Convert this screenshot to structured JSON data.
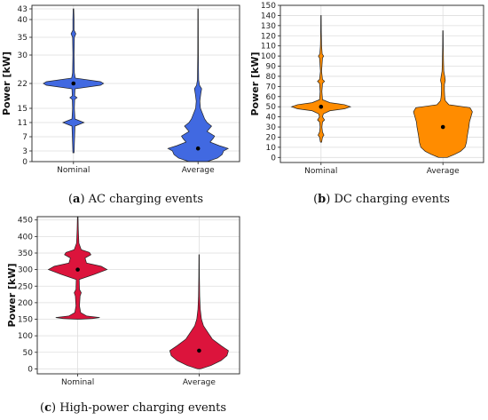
{
  "chart_data": [
    {
      "type": "violin",
      "caption_letter": "a",
      "caption_text": "AC charging events",
      "ylabel": "Power [kW]",
      "ylim": [
        0,
        44
      ],
      "yticks": [
        0,
        3,
        7,
        11,
        15,
        22,
        30,
        35,
        40,
        43
      ],
      "categories": [
        "Nominal",
        "Average"
      ],
      "color": "#4169e1",
      "grid": true,
      "series": [
        {
          "category": "Nominal",
          "median": 22,
          "range": [
            2.5,
            43
          ],
          "density": [
            [
              2.5,
              0.02
            ],
            [
              5,
              0.03
            ],
            [
              10,
              0.05
            ],
            [
              11,
              0.35
            ],
            [
              12,
              0.05
            ],
            [
              15,
              0.03
            ],
            [
              17.5,
              0.04
            ],
            [
              18,
              0.12
            ],
            [
              18.5,
              0.04
            ],
            [
              20.5,
              0.05
            ],
            [
              21.5,
              0.9
            ],
            [
              22,
              1.0
            ],
            [
              22.5,
              0.9
            ],
            [
              23.5,
              0.06
            ],
            [
              25,
              0.03
            ],
            [
              30,
              0.02
            ],
            [
              35,
              0.03
            ],
            [
              36,
              0.08
            ],
            [
              37,
              0.02
            ],
            [
              40,
              0.02
            ],
            [
              43,
              0.01
            ]
          ]
        },
        {
          "category": "Average",
          "median": 3.7,
          "range": [
            0,
            43
          ],
          "density": [
            [
              0,
              0.3
            ],
            [
              1,
              0.65
            ],
            [
              2,
              0.8
            ],
            [
              3,
              0.85
            ],
            [
              3.7,
              1.0
            ],
            [
              4.5,
              0.7
            ],
            [
              5.5,
              0.4
            ],
            [
              6.5,
              0.5
            ],
            [
              7.2,
              0.55
            ],
            [
              8.5,
              0.3
            ],
            [
              10,
              0.45
            ],
            [
              11,
              0.3
            ],
            [
              12,
              0.22
            ],
            [
              13.5,
              0.15
            ],
            [
              15,
              0.08
            ],
            [
              17,
              0.06
            ],
            [
              19,
              0.09
            ],
            [
              20.5,
              0.12
            ],
            [
              21.5,
              0.05
            ],
            [
              23,
              0.02
            ],
            [
              30,
              0.01
            ],
            [
              43,
              0.005
            ]
          ]
        }
      ]
    },
    {
      "type": "violin",
      "caption_letter": "b",
      "caption_text": "DC charging events",
      "ylabel": "Power [kW]",
      "ylim": [
        -5,
        150
      ],
      "yticks": [
        0,
        10,
        20,
        30,
        40,
        50,
        60,
        70,
        80,
        90,
        100,
        110,
        120,
        130,
        140,
        150
      ],
      "categories": [
        "Nominal",
        "Average"
      ],
      "color": "#ff8c00",
      "grid": true,
      "series": [
        {
          "category": "Nominal",
          "median": 50,
          "range": [
            15,
            140
          ],
          "density": [
            [
              15,
              0.02
            ],
            [
              20,
              0.05
            ],
            [
              22,
              0.1
            ],
            [
              25,
              0.05
            ],
            [
              30,
              0.03
            ],
            [
              35,
              0.05
            ],
            [
              37,
              0.12
            ],
            [
              40,
              0.05
            ],
            [
              43,
              0.08
            ],
            [
              46,
              0.3
            ],
            [
              48,
              0.8
            ],
            [
              50,
              1.0
            ],
            [
              52,
              0.8
            ],
            [
              54,
              0.3
            ],
            [
              57,
              0.05
            ],
            [
              65,
              0.03
            ],
            [
              73,
              0.05
            ],
            [
              75,
              0.12
            ],
            [
              77,
              0.05
            ],
            [
              85,
              0.02
            ],
            [
              98,
              0.05
            ],
            [
              100,
              0.09
            ],
            [
              102,
              0.04
            ],
            [
              110,
              0.02
            ],
            [
              125,
              0.01
            ],
            [
              140,
              0.005
            ]
          ]
        },
        {
          "category": "Average",
          "median": 30,
          "range": [
            0,
            125
          ],
          "density": [
            [
              0,
              0.15
            ],
            [
              3,
              0.4
            ],
            [
              6,
              0.6
            ],
            [
              10,
              0.75
            ],
            [
              15,
              0.8
            ],
            [
              20,
              0.82
            ],
            [
              25,
              0.85
            ],
            [
              30,
              0.88
            ],
            [
              35,
              0.9
            ],
            [
              40,
              0.95
            ],
            [
              45,
              1.0
            ],
            [
              49,
              0.92
            ],
            [
              52,
              0.2
            ],
            [
              56,
              0.08
            ],
            [
              60,
              0.06
            ],
            [
              66,
              0.05
            ],
            [
              72,
              0.05
            ],
            [
              76,
              0.08
            ],
            [
              80,
              0.06
            ],
            [
              85,
              0.03
            ],
            [
              95,
              0.02
            ],
            [
              110,
              0.01
            ],
            [
              125,
              0.005
            ]
          ]
        }
      ]
    },
    {
      "type": "violin",
      "caption_letter": "c",
      "caption_text": "High-power charging events",
      "ylabel": "Power [kW]",
      "ylim": [
        -15,
        460
      ],
      "yticks": [
        0,
        50,
        100,
        150,
        200,
        250,
        300,
        350,
        400,
        450
      ],
      "categories": [
        "Nominal",
        "Average"
      ],
      "color": "#dc143c",
      "grid": true,
      "series": [
        {
          "category": "Nominal",
          "median": 300,
          "range": [
            150,
            460
          ],
          "density": [
            [
              150,
              0.05
            ],
            [
              152,
              0.5
            ],
            [
              155,
              0.75
            ],
            [
              160,
              0.3
            ],
            [
              170,
              0.1
            ],
            [
              190,
              0.06
            ],
            [
              220,
              0.08
            ],
            [
              230,
              0.12
            ],
            [
              240,
              0.06
            ],
            [
              270,
              0.05
            ],
            [
              285,
              0.55
            ],
            [
              295,
              0.85
            ],
            [
              300,
              1.0
            ],
            [
              310,
              0.8
            ],
            [
              320,
              0.3
            ],
            [
              335,
              0.25
            ],
            [
              345,
              0.45
            ],
            [
              352,
              0.4
            ],
            [
              360,
              0.12
            ],
            [
              380,
              0.04
            ],
            [
              420,
              0.02
            ],
            [
              460,
              0.01
            ]
          ]
        },
        {
          "category": "Average",
          "median": 55,
          "range": [
            0,
            345
          ],
          "density": [
            [
              0,
              0.05
            ],
            [
              10,
              0.4
            ],
            [
              25,
              0.75
            ],
            [
              40,
              0.95
            ],
            [
              55,
              1.0
            ],
            [
              70,
              0.75
            ],
            [
              90,
              0.45
            ],
            [
              110,
              0.3
            ],
            [
              130,
              0.15
            ],
            [
              150,
              0.08
            ],
            [
              180,
              0.04
            ],
            [
              220,
              0.02
            ],
            [
              280,
              0.01
            ],
            [
              345,
              0.005
            ]
          ]
        }
      ]
    }
  ]
}
